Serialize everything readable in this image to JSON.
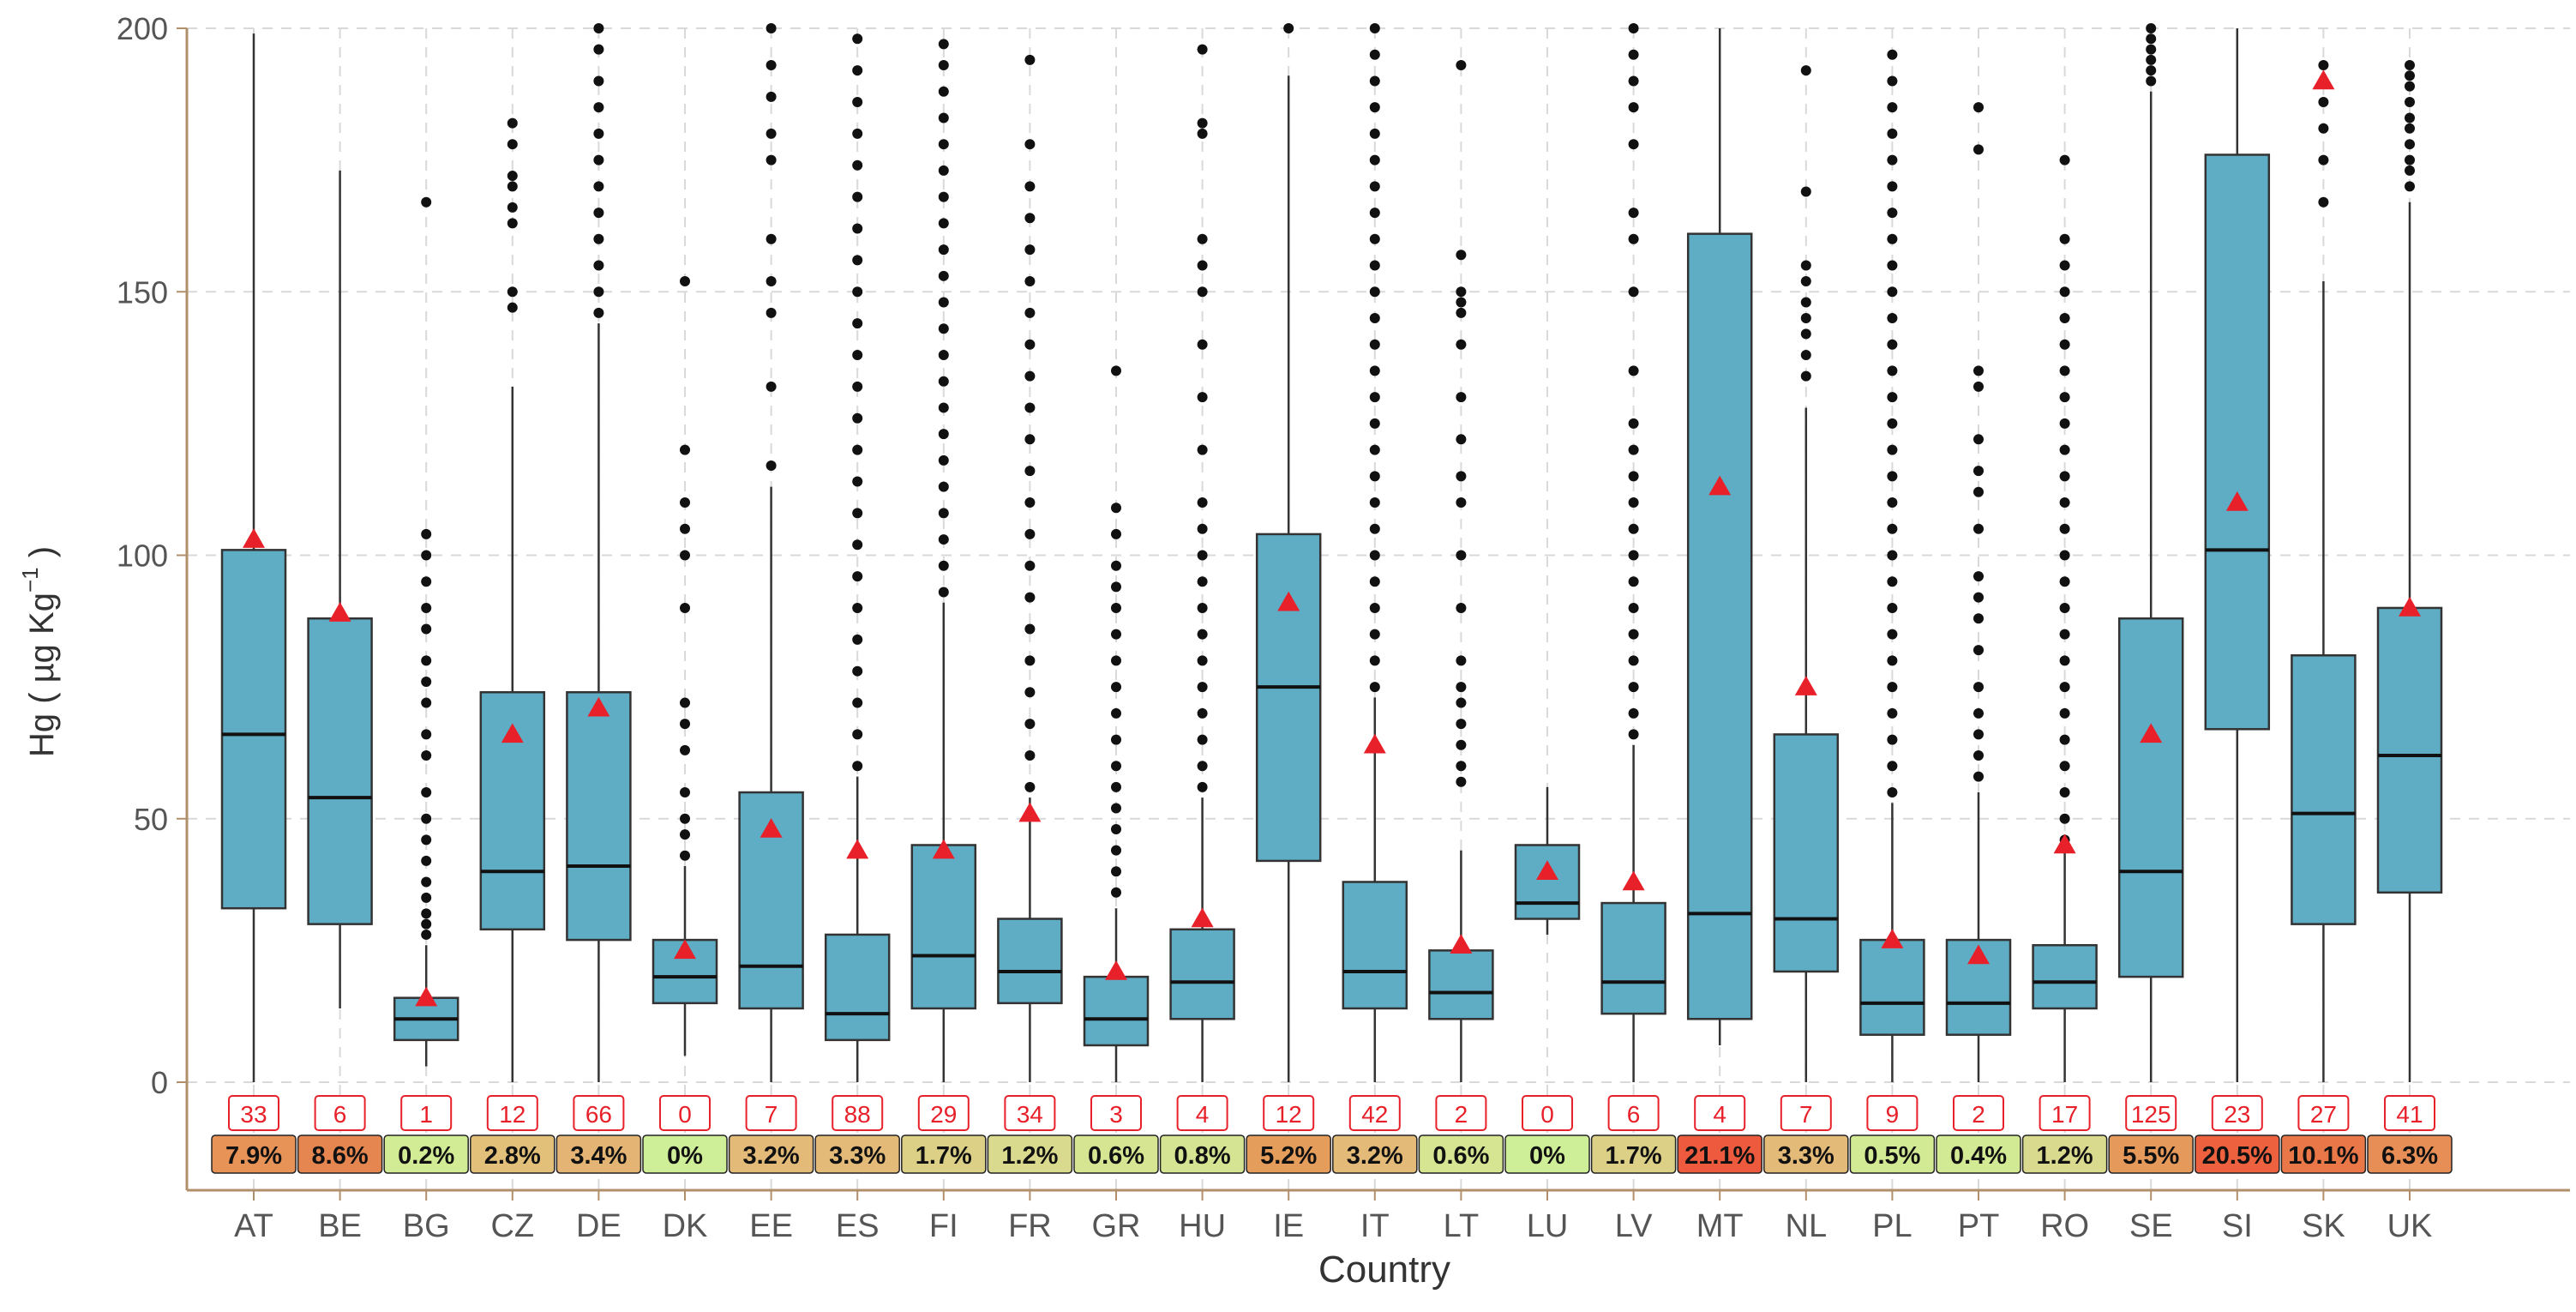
{
  "chart_data": {
    "type": "boxplot",
    "title": "",
    "xlabel": "Country",
    "ylabel_main": "Hg ( µg  Kg",
    "ylabel_sup": "−1",
    "ylabel_tail": " )",
    "ylim": [
      -30,
      200
    ],
    "yticks": [
      0,
      50,
      100,
      150,
      200
    ],
    "ytick_labels": [
      "0",
      "50",
      "100",
      "150",
      "200"
    ],
    "grid": true,
    "colors": {
      "box_fill": "#5fadc5",
      "mean_marker": "#e8202a",
      "outlier": "#111111",
      "count_label": "#e8202a",
      "grid": "#d9d9d9",
      "axis": "#b08f6a"
    },
    "categories": [
      "AT",
      "BE",
      "BG",
      "CZ",
      "DE",
      "DK",
      "EE",
      "ES",
      "FI",
      "FR",
      "GR",
      "HU",
      "IE",
      "IT",
      "LT",
      "LU",
      "LV",
      "MT",
      "NL",
      "PL",
      "PT",
      "RO",
      "SE",
      "SI",
      "SK",
      "UK"
    ],
    "boxes": [
      {
        "country": "AT",
        "q1": 33,
        "median": 66,
        "q3": 101,
        "whisker_low": 0,
        "whisker_high": 199,
        "mean": 103,
        "outliers": []
      },
      {
        "country": "BE",
        "q1": 30,
        "median": 54,
        "q3": 88,
        "whisker_low": 14,
        "whisker_high": 173,
        "mean": 89,
        "outliers": []
      },
      {
        "country": "BG",
        "q1": 8,
        "median": 12,
        "q3": 16,
        "whisker_low": 3,
        "whisker_high": 26,
        "mean": 16,
        "outliers": [
          28,
          30,
          32,
          35,
          38,
          42,
          46,
          50,
          55,
          62,
          66,
          72,
          76,
          80,
          86,
          90,
          95,
          100,
          104,
          167
        ]
      },
      {
        "country": "CZ",
        "q1": 29,
        "median": 40,
        "q3": 74,
        "whisker_low": 0,
        "whisker_high": 132,
        "mean": 66,
        "outliers": [
          147,
          150,
          163,
          166,
          170,
          172,
          178,
          182
        ]
      },
      {
        "country": "DE",
        "q1": 27,
        "median": 41,
        "q3": 74,
        "whisker_low": 0,
        "whisker_high": 144,
        "mean": 71,
        "outliers": [
          146,
          150,
          155,
          160,
          165,
          170,
          175,
          180,
          185,
          190,
          196,
          200
        ]
      },
      {
        "country": "DK",
        "q1": 15,
        "median": 20,
        "q3": 27,
        "whisker_low": 5,
        "whisker_high": 41,
        "mean": 25,
        "outliers": [
          43,
          47,
          50,
          55,
          63,
          68,
          72,
          90,
          100,
          105,
          110,
          120,
          152
        ]
      },
      {
        "country": "EE",
        "q1": 14,
        "median": 22,
        "q3": 55,
        "whisker_low": 0,
        "whisker_high": 113,
        "mean": 48,
        "outliers": [
          117,
          132,
          146,
          152,
          160,
          175,
          180,
          187,
          193,
          200
        ]
      },
      {
        "country": "ES",
        "q1": 8,
        "median": 13,
        "q3": 28,
        "whisker_low": 0,
        "whisker_high": 58,
        "mean": 44,
        "outliers": [
          60,
          66,
          72,
          78,
          84,
          90,
          96,
          102,
          108,
          114,
          120,
          126,
          132,
          138,
          144,
          150,
          156,
          162,
          168,
          174,
          180,
          186,
          192,
          198
        ]
      },
      {
        "country": "FI",
        "q1": 14,
        "median": 24,
        "q3": 45,
        "whisker_low": 0,
        "whisker_high": 91,
        "mean": 44,
        "outliers": [
          93,
          98,
          103,
          108,
          113,
          118,
          123,
          128,
          133,
          138,
          143,
          148,
          153,
          158,
          163,
          168,
          173,
          178,
          183,
          188,
          193,
          197
        ]
      },
      {
        "country": "FR",
        "q1": 15,
        "median": 21,
        "q3": 31,
        "whisker_low": 0,
        "whisker_high": 54,
        "mean": 51,
        "outliers": [
          56,
          62,
          68,
          74,
          80,
          86,
          92,
          98,
          104,
          110,
          116,
          122,
          128,
          134,
          140,
          146,
          152,
          158,
          164,
          170,
          178,
          194
        ]
      },
      {
        "country": "GR",
        "q1": 7,
        "median": 12,
        "q3": 20,
        "whisker_low": 0,
        "whisker_high": 33,
        "mean": 21,
        "outliers": [
          36,
          40,
          44,
          48,
          52,
          56,
          60,
          65,
          70,
          75,
          80,
          85,
          90,
          94,
          98,
          104,
          109,
          135
        ]
      },
      {
        "country": "HU",
        "q1": 12,
        "median": 19,
        "q3": 29,
        "whisker_low": 0,
        "whisker_high": 54,
        "mean": 31,
        "outliers": [
          56,
          60,
          65,
          70,
          75,
          80,
          85,
          90,
          95,
          100,
          105,
          110,
          120,
          130,
          140,
          150,
          155,
          160,
          180,
          182,
          196
        ]
      },
      {
        "country": "IE",
        "q1": 42,
        "median": 75,
        "q3": 104,
        "whisker_low": 0,
        "whisker_high": 191,
        "mean": 91,
        "outliers": [
          200
        ]
      },
      {
        "country": "IT",
        "q1": 14,
        "median": 21,
        "q3": 38,
        "whisker_low": 0,
        "whisker_high": 73,
        "mean": 64,
        "outliers": [
          75,
          80,
          85,
          90,
          95,
          100,
          105,
          110,
          115,
          120,
          125,
          130,
          135,
          140,
          145,
          150,
          155,
          160,
          165,
          170,
          175,
          180,
          185,
          190,
          195,
          200
        ]
      },
      {
        "country": "LT",
        "q1": 12,
        "median": 17,
        "q3": 25,
        "whisker_low": 0,
        "whisker_high": 44,
        "mean": 26,
        "outliers": [
          57,
          60,
          64,
          68,
          72,
          75,
          80,
          90,
          100,
          110,
          115,
          122,
          130,
          140,
          146,
          148,
          150,
          157,
          193
        ]
      },
      {
        "country": "LU",
        "q1": 31,
        "median": 34,
        "q3": 45,
        "whisker_low": 28,
        "whisker_high": 56,
        "mean": 40,
        "outliers": []
      },
      {
        "country": "LV",
        "q1": 13,
        "median": 19,
        "q3": 34,
        "whisker_low": 0,
        "whisker_high": 64,
        "mean": 38,
        "outliers": [
          66,
          70,
          75,
          80,
          85,
          90,
          95,
          100,
          105,
          110,
          115,
          120,
          125,
          135,
          150,
          160,
          165,
          178,
          185,
          190,
          195,
          200
        ]
      },
      {
        "country": "MT",
        "q1": 12,
        "median": 32,
        "q3": 161,
        "whisker_low": 7,
        "whisker_high": 200,
        "mean": 113,
        "outliers": []
      },
      {
        "country": "NL",
        "q1": 21,
        "median": 31,
        "q3": 66,
        "whisker_low": 0,
        "whisker_high": 128,
        "mean": 75,
        "outliers": [
          134,
          138,
          142,
          145,
          148,
          152,
          155,
          169,
          192
        ]
      },
      {
        "country": "PL",
        "q1": 9,
        "median": 15,
        "q3": 27,
        "whisker_low": 0,
        "whisker_high": 53,
        "mean": 27,
        "outliers": [
          55,
          60,
          65,
          70,
          75,
          80,
          85,
          90,
          95,
          100,
          105,
          110,
          115,
          120,
          125,
          130,
          135,
          140,
          145,
          150,
          155,
          160,
          165,
          170,
          175,
          180,
          185,
          190,
          195
        ]
      },
      {
        "country": "PT",
        "q1": 9,
        "median": 15,
        "q3": 27,
        "whisker_low": 0,
        "whisker_high": 55,
        "mean": 24,
        "outliers": [
          58,
          62,
          66,
          70,
          75,
          82,
          88,
          92,
          96,
          105,
          112,
          116,
          122,
          132,
          135,
          177,
          185
        ]
      },
      {
        "country": "RO",
        "q1": 14,
        "median": 19,
        "q3": 26,
        "whisker_low": 0,
        "whisker_high": 44,
        "mean": 45,
        "outliers": [
          46,
          50,
          55,
          60,
          65,
          70,
          75,
          80,
          85,
          90,
          95,
          100,
          105,
          110,
          115,
          120,
          125,
          130,
          135,
          140,
          145,
          150,
          155,
          160,
          175
        ]
      },
      {
        "country": "SE",
        "q1": 20,
        "median": 40,
        "q3": 88,
        "whisker_low": 0,
        "whisker_high": 188,
        "mean": 66,
        "outliers": [
          190,
          192,
          194,
          196,
          198,
          200
        ]
      },
      {
        "country": "SI",
        "q1": 67,
        "median": 101,
        "q3": 176,
        "whisker_low": 0,
        "whisker_high": 200,
        "mean": 110,
        "outliers": []
      },
      {
        "country": "SK",
        "q1": 30,
        "median": 51,
        "q3": 81,
        "whisker_low": 0,
        "whisker_high": 152,
        "mean": 190,
        "outliers": [
          167,
          175,
          181,
          186,
          193
        ]
      },
      {
        "country": "UK",
        "q1": 36,
        "median": 62,
        "q3": 90,
        "whisker_low": 0,
        "whisker_high": 167,
        "mean": 90,
        "outliers": [
          170,
          173,
          175,
          178,
          181,
          183,
          186,
          189,
          191,
          193
        ]
      }
    ],
    "count_labels": [
      "33",
      "6",
      "1",
      "12",
      "66",
      "0",
      "7",
      "88",
      "29",
      "34",
      "3",
      "4",
      "12",
      "42",
      "2",
      "0",
      "6",
      "4",
      "7",
      "9",
      "2",
      "17",
      "125",
      "23",
      "27",
      "41"
    ],
    "percent_labels": [
      "7.9%",
      "8.6%",
      "0.2%",
      "2.8%",
      "3.4%",
      "0%",
      "3.2%",
      "3.3%",
      "1.7%",
      "1.2%",
      "0.6%",
      "0.8%",
      "5.2%",
      "3.2%",
      "0.6%",
      "0%",
      "1.7%",
      "21.1%",
      "3.3%",
      "0.5%",
      "0.4%",
      "1.2%",
      "5.5%",
      "20.5%",
      "10.1%",
      "6.3%"
    ],
    "percent_colors": [
      "#e79256",
      "#e58650",
      "#d2ec95",
      "#e2c07a",
      "#e3b474",
      "#cfee98",
      "#e3ba77",
      "#e3ba77",
      "#dcd087",
      "#d9da8e",
      "#d5e592",
      "#d4e493",
      "#e59d5c",
      "#e3ba77",
      "#d5e592",
      "#cfee98",
      "#dcd087",
      "#ed5a3e",
      "#e3ba77",
      "#d3ea95",
      "#d3ea95",
      "#d9da8e",
      "#e5995a",
      "#ed613f",
      "#ea7748",
      "#e68e55"
    ]
  }
}
